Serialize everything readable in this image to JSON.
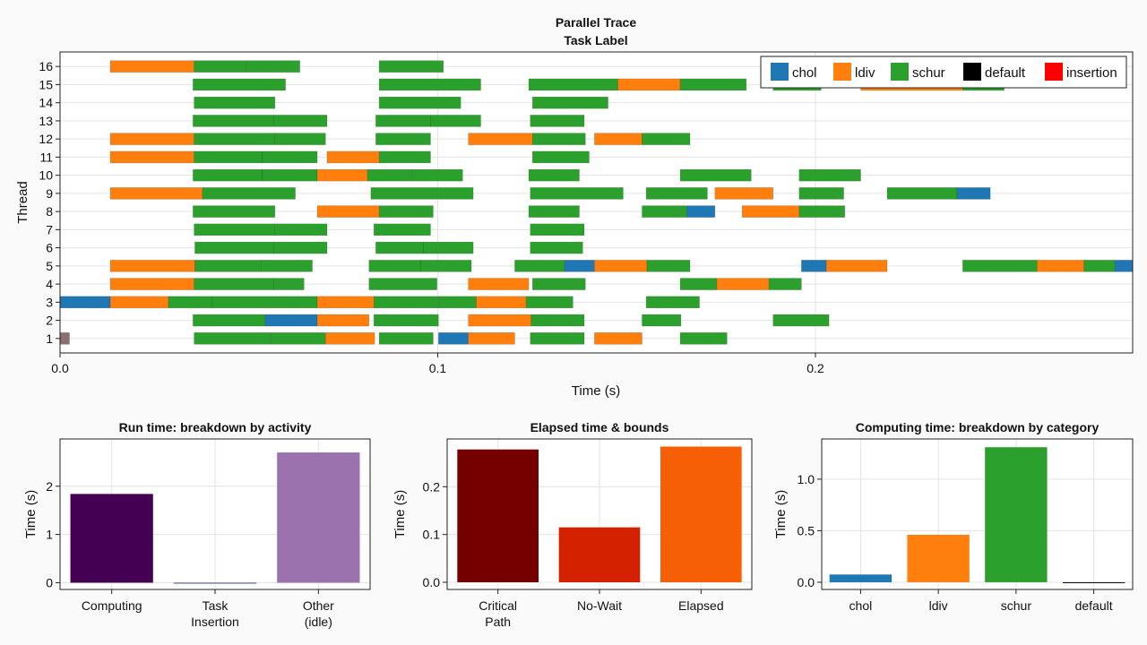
{
  "colors": {
    "chol": "#1f77b4",
    "ldiv": "#ff7f0e",
    "schur": "#2ca02c",
    "default": "#000000",
    "insertion": "#ff0000",
    "computing": "#440154",
    "task_insertion": "#3b528b",
    "other_idle": "#9b72ae",
    "critical_path": "#740000",
    "no_wait": "#d42100",
    "elapsed": "#f75f07",
    "small_marker": "#8c7070"
  },
  "chart_data": [
    {
      "type": "gantt",
      "title": "Parallel Trace",
      "subtitle": "Task Label",
      "xlabel": "Time (s)",
      "ylabel": "Thread",
      "xlim": [
        0,
        0.284
      ],
      "ylim": [
        0.2,
        16.8
      ],
      "xticks": [
        0.0,
        0.1,
        0.2
      ],
      "xtick_labels": [
        "0.0",
        "0.1",
        "0.2"
      ],
      "yticks": [
        1,
        2,
        3,
        4,
        5,
        6,
        7,
        8,
        9,
        10,
        11,
        12,
        13,
        14,
        15,
        16
      ],
      "grid": true,
      "legend_position": "top-right",
      "legend": [
        "chol",
        "ldiv",
        "schur",
        "default",
        "insertion"
      ],
      "tasks": [
        [
          1,
          0.0,
          0.0025,
          "small"
        ],
        [
          1,
          0.0355,
          0.0558,
          "schur"
        ],
        [
          1,
          0.0558,
          0.0703,
          "schur"
        ],
        [
          1,
          0.0703,
          0.0833,
          "ldiv"
        ],
        [
          1,
          0.0845,
          0.0988,
          "schur"
        ],
        [
          1,
          0.1002,
          0.1081,
          "chol"
        ],
        [
          1,
          0.1081,
          0.1204,
          "ldiv"
        ],
        [
          1,
          0.1245,
          0.1388,
          "schur"
        ],
        [
          1,
          0.1415,
          0.1541,
          "ldiv"
        ],
        [
          1,
          0.1642,
          0.1766,
          "schur"
        ],
        [
          2,
          0.0352,
          0.0543,
          "schur"
        ],
        [
          2,
          0.0543,
          0.0681,
          "chol"
        ],
        [
          2,
          0.0681,
          0.0818,
          "ldiv"
        ],
        [
          2,
          0.0831,
          0.1002,
          "schur"
        ],
        [
          2,
          0.1081,
          0.1247,
          "ldiv"
        ],
        [
          2,
          0.1247,
          0.1388,
          "schur"
        ],
        [
          2,
          0.1541,
          0.1644,
          "schur"
        ],
        [
          2,
          0.1888,
          0.2036,
          "schur"
        ],
        [
          3,
          0.0,
          0.0133,
          "chol"
        ],
        [
          3,
          0.0133,
          0.0287,
          "ldiv"
        ],
        [
          3,
          0.0287,
          0.0402,
          "schur"
        ],
        [
          3,
          0.0402,
          0.0681,
          "schur"
        ],
        [
          3,
          0.0681,
          0.0831,
          "ldiv"
        ],
        [
          3,
          0.0831,
          0.1002,
          "schur"
        ],
        [
          3,
          0.1002,
          0.1102,
          "schur"
        ],
        [
          3,
          0.1102,
          0.1234,
          "ldiv"
        ],
        [
          3,
          0.1234,
          0.1358,
          "schur"
        ],
        [
          3,
          0.1552,
          0.1693,
          "schur"
        ],
        [
          4,
          0.0133,
          0.0355,
          "ldiv"
        ],
        [
          4,
          0.0355,
          0.0566,
          "schur"
        ],
        [
          4,
          0.0566,
          0.0646,
          "schur"
        ],
        [
          4,
          0.0818,
          0.0998,
          "schur"
        ],
        [
          4,
          0.1081,
          0.1241,
          "ldiv"
        ],
        [
          4,
          0.1251,
          0.1391,
          "schur"
        ],
        [
          4,
          0.1642,
          0.1739,
          "schur"
        ],
        [
          4,
          0.1739,
          0.1877,
          "ldiv"
        ],
        [
          4,
          0.1877,
          0.1963,
          "schur"
        ],
        [
          5,
          0.0133,
          0.0357,
          "ldiv"
        ],
        [
          5,
          0.0357,
          0.0532,
          "schur"
        ],
        [
          5,
          0.0532,
          0.0668,
          "schur"
        ],
        [
          5,
          0.0818,
          0.0955,
          "schur"
        ],
        [
          5,
          0.0955,
          0.1089,
          "schur"
        ],
        [
          5,
          0.1204,
          0.1336,
          "schur"
        ],
        [
          5,
          0.1336,
          0.1415,
          "chol"
        ],
        [
          5,
          0.1415,
          0.1554,
          "ldiv"
        ],
        [
          5,
          0.1554,
          0.1668,
          "schur"
        ],
        [
          5,
          0.1963,
          0.2029,
          "chol"
        ],
        [
          5,
          0.2029,
          0.219,
          "ldiv"
        ],
        [
          5,
          0.239,
          0.2587,
          "schur"
        ],
        [
          5,
          0.2587,
          0.2711,
          "ldiv"
        ],
        [
          5,
          0.2711,
          0.2793,
          "schur"
        ],
        [
          5,
          0.2793,
          0.284,
          "chol"
        ],
        [
          6,
          0.0357,
          0.0566,
          "schur"
        ],
        [
          6,
          0.0566,
          0.0707,
          "schur"
        ],
        [
          6,
          0.0836,
          0.0962,
          "schur"
        ],
        [
          6,
          0.0962,
          0.1094,
          "schur"
        ],
        [
          6,
          0.1245,
          0.1384,
          "schur"
        ],
        [
          7,
          0.0355,
          0.0569,
          "schur"
        ],
        [
          7,
          0.0569,
          0.0707,
          "schur"
        ],
        [
          7,
          0.0831,
          0.0981,
          "schur"
        ],
        [
          7,
          0.1245,
          0.1388,
          "schur"
        ],
        [
          8,
          0.0352,
          0.0569,
          "schur"
        ],
        [
          8,
          0.0681,
          0.0845,
          "ldiv"
        ],
        [
          8,
          0.0845,
          0.0988,
          "schur"
        ],
        [
          8,
          0.1241,
          0.1375,
          "schur"
        ],
        [
          8,
          0.1541,
          0.166,
          "schur"
        ],
        [
          8,
          0.166,
          0.1734,
          "chol"
        ],
        [
          8,
          0.1806,
          0.1957,
          "ldiv"
        ],
        [
          8,
          0.1957,
          0.2078,
          "schur"
        ],
        [
          9,
          0.0133,
          0.0377,
          "ldiv"
        ],
        [
          9,
          0.0377,
          0.0623,
          "schur"
        ],
        [
          9,
          0.0823,
          0.1094,
          "schur"
        ],
        [
          9,
          0.1245,
          0.1491,
          "schur"
        ],
        [
          9,
          0.1552,
          0.1714,
          "schur"
        ],
        [
          9,
          0.1734,
          0.1888,
          "ldiv"
        ],
        [
          9,
          0.1957,
          0.2075,
          "schur"
        ],
        [
          9,
          0.219,
          0.2375,
          "schur"
        ],
        [
          9,
          0.2375,
          0.2463,
          "chol"
        ],
        [
          10,
          0.0352,
          0.0535,
          "schur"
        ],
        [
          10,
          0.0535,
          0.0681,
          "schur"
        ],
        [
          10,
          0.0681,
          0.0814,
          "ldiv"
        ],
        [
          10,
          0.0814,
          0.0932,
          "schur"
        ],
        [
          10,
          0.0932,
          0.1066,
          "schur"
        ],
        [
          10,
          0.1241,
          0.1375,
          "schur"
        ],
        [
          10,
          0.1642,
          0.183,
          "schur"
        ],
        [
          10,
          0.1957,
          0.212,
          "schur"
        ],
        [
          11,
          0.0133,
          0.0355,
          "ldiv"
        ],
        [
          11,
          0.0355,
          0.0535,
          "schur"
        ],
        [
          11,
          0.0535,
          0.0681,
          "schur"
        ],
        [
          11,
          0.0707,
          0.0845,
          "ldiv"
        ],
        [
          11,
          0.0845,
          0.0981,
          "schur"
        ],
        [
          11,
          0.1251,
          0.1401,
          "schur"
        ],
        [
          12,
          0.0133,
          0.0355,
          "ldiv"
        ],
        [
          12,
          0.0355,
          0.0569,
          "schur"
        ],
        [
          12,
          0.0569,
          0.0703,
          "schur"
        ],
        [
          12,
          0.0836,
          0.0981,
          "schur"
        ],
        [
          12,
          0.1081,
          0.1251,
          "ldiv"
        ],
        [
          12,
          0.1251,
          0.1391,
          "schur"
        ],
        [
          12,
          0.1415,
          0.1541,
          "ldiv"
        ],
        [
          12,
          0.1541,
          0.1668,
          "schur"
        ],
        [
          13,
          0.0352,
          0.0566,
          "schur"
        ],
        [
          13,
          0.0566,
          0.0707,
          "schur"
        ],
        [
          13,
          0.0836,
          0.0981,
          "schur"
        ],
        [
          13,
          0.0981,
          0.1114,
          "schur"
        ],
        [
          13,
          0.1245,
          0.1388,
          "schur"
        ],
        [
          14,
          0.0355,
          0.0569,
          "schur"
        ],
        [
          14,
          0.0845,
          0.1061,
          "schur"
        ],
        [
          14,
          0.1251,
          0.1451,
          "schur"
        ],
        [
          15,
          0.0352,
          0.0597,
          "schur"
        ],
        [
          15,
          0.0845,
          0.1114,
          "schur"
        ],
        [
          15,
          0.1241,
          0.1477,
          "schur"
        ],
        [
          15,
          0.1477,
          0.1642,
          "ldiv"
        ],
        [
          15,
          0.1642,
          0.1817,
          "schur"
        ],
        [
          15,
          0.1888,
          0.2015,
          "schur"
        ],
        [
          15,
          0.212,
          0.239,
          "ldiv"
        ],
        [
          15,
          0.239,
          0.25,
          "schur"
        ],
        [
          16,
          0.0133,
          0.0355,
          "ldiv"
        ],
        [
          16,
          0.0355,
          0.0493,
          "schur"
        ],
        [
          16,
          0.0493,
          0.0635,
          "schur"
        ],
        [
          16,
          0.0845,
          0.1015,
          "schur"
        ]
      ]
    },
    {
      "type": "bar",
      "title": "Run time: breakdown by activity",
      "ylabel": "Time (s)",
      "categories": [
        "Computing",
        "Task\nInsertion",
        "Other\n(idle)"
      ],
      "values": [
        1.84,
        0.0,
        2.7
      ],
      "color_keys": [
        "computing",
        "task_insertion",
        "other_idle"
      ],
      "ylim": [
        -0.14,
        2.98
      ],
      "yticks": [
        0,
        1,
        2
      ],
      "grid": true
    },
    {
      "type": "bar",
      "title": "Elapsed time & bounds",
      "ylabel": "Time (s)",
      "categories": [
        "Critical\nPath",
        "No-Wait",
        "Elapsed"
      ],
      "values": [
        0.278,
        0.115,
        0.284
      ],
      "color_keys": [
        "critical_path",
        "no_wait",
        "elapsed"
      ],
      "ylim": [
        -0.015,
        0.3
      ],
      "yticks": [
        0.0,
        0.1,
        0.2
      ],
      "ytick_labels": [
        "0.0",
        "0.1",
        "0.2"
      ],
      "grid": true
    },
    {
      "type": "bar",
      "title": "Computing time: breakdown by category",
      "ylabel": "Time (s)",
      "categories": [
        "chol",
        "ldiv",
        "schur",
        "default"
      ],
      "values": [
        0.075,
        0.46,
        1.31,
        0.0
      ],
      "color_keys": [
        "chol",
        "ldiv",
        "schur",
        "default"
      ],
      "ylim": [
        -0.07,
        1.39
      ],
      "yticks": [
        0.0,
        0.5,
        1.0
      ],
      "ytick_labels": [
        "0.0",
        "0.5",
        "1.0"
      ],
      "grid": true
    }
  ]
}
